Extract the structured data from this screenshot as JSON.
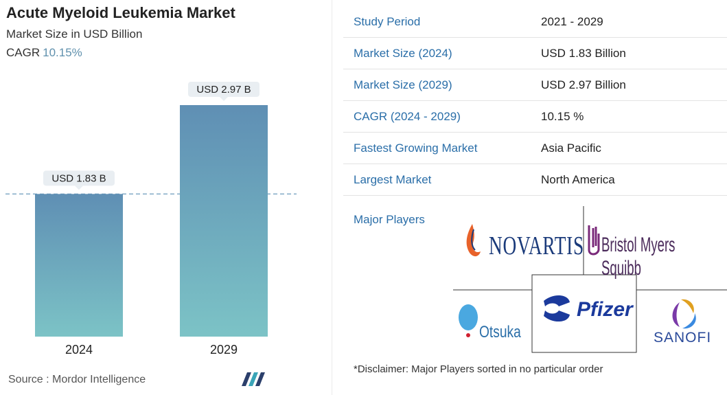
{
  "header": {
    "title": "Acute Myeloid Leukemia Market",
    "subtitle": "Market Size in USD Billion",
    "cagr_label": "CAGR",
    "cagr_value": "10.15%"
  },
  "chart_data": {
    "type": "bar",
    "categories": [
      "2024",
      "2029"
    ],
    "values": [
      1.83,
      2.97
    ],
    "data_labels": [
      "USD 1.83 B",
      "USD 2.97 B"
    ],
    "title": "Acute Myeloid Leukemia Market",
    "ylabel": "Market Size in USD Billion",
    "ylim": [
      0,
      2.97
    ],
    "grid": false,
    "reference_line_value": 1.83
  },
  "source": {
    "label": "Source :",
    "name": "Mordor Intelligence"
  },
  "info_table": {
    "rows": [
      {
        "key": "Study Period",
        "value": "2021 - 2029"
      },
      {
        "key": "Market Size (2024)",
        "value": "USD 1.83 Billion"
      },
      {
        "key": "Market Size (2029)",
        "value": "USD 2.97 Billion"
      },
      {
        "key": "CAGR (2024 - 2029)",
        "value": "10.15 %"
      },
      {
        "key": "Fastest Growing Market",
        "value": "Asia Pacific"
      },
      {
        "key": "Largest Market",
        "value": "North America"
      }
    ]
  },
  "major_players": {
    "label": "Major Players",
    "logos": [
      "NOVARTIS",
      "Bristol Myers Squibb",
      "Otsuka",
      "Pfizer",
      "SANOFI"
    ],
    "disclaimer": "*Disclaimer: Major Players sorted in no particular order"
  },
  "colors": {
    "bar_top": "#5f8fb4",
    "bar_bottom": "#7cc3c6",
    "accent": "#2a6ea8",
    "cagr": "#5f90ad"
  }
}
